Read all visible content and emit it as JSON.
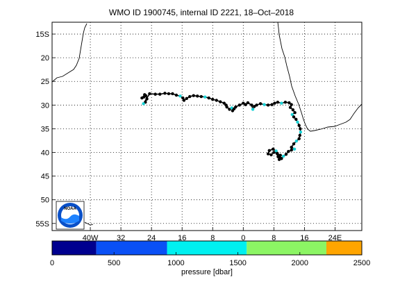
{
  "title": "WMO ID 1900745, internal ID 2221, 18–Oct–2018",
  "map": {
    "lat_labels": [
      "15S",
      "20",
      "25",
      "30",
      "35",
      "40",
      "45",
      "50",
      "55S"
    ],
    "lat_values": [
      15,
      20,
      25,
      30,
      35,
      40,
      45,
      50,
      55
    ],
    "lon_labels": [
      "40W",
      "32",
      "24",
      "16",
      "8",
      "0",
      "8",
      "16",
      "24E"
    ],
    "lon_values": [
      -40,
      -32,
      -24,
      -16,
      -8,
      0,
      8,
      16,
      24
    ],
    "lon_range": [
      -50,
      31
    ],
    "lat_range": [
      12.5,
      56.5
    ],
    "grid": true,
    "coastline_color": "#000000",
    "track_color": "#000000",
    "track_highlight_color": "#19d2d6",
    "track": [
      [
        -26.5,
        28.5
      ],
      [
        -26,
        28.3
      ],
      [
        -25.8,
        27.8
      ],
      [
        -25.5,
        28.0
      ],
      [
        -25.2,
        28.7
      ],
      [
        -25.6,
        29.4
      ],
      [
        -26.1,
        29.7
      ],
      [
        -24.5,
        27.6
      ],
      [
        -23,
        27.7
      ],
      [
        -21.8,
        27.7
      ],
      [
        -20.5,
        27.5
      ],
      [
        -19.5,
        27.6
      ],
      [
        -18.5,
        27.6
      ],
      [
        -17.5,
        27.9
      ],
      [
        -16.5,
        28.1
      ],
      [
        -15.8,
        28.5
      ],
      [
        -15.5,
        29.0
      ],
      [
        -14.8,
        28.6
      ],
      [
        -14,
        28.2
      ],
      [
        -13,
        28.0
      ],
      [
        -12,
        28.1
      ],
      [
        -11,
        28.2
      ],
      [
        -10,
        28.3
      ],
      [
        -9,
        28.5
      ],
      [
        -8,
        28.8
      ],
      [
        -7,
        29.0
      ],
      [
        -6,
        29.3
      ],
      [
        -5,
        29.6
      ],
      [
        -4.5,
        30.0
      ],
      [
        -4.3,
        30.4
      ],
      [
        -3.6,
        30.9
      ],
      [
        -3.0,
        30.6
      ],
      [
        -2.4,
        30.8
      ],
      [
        -2.8,
        31.2
      ],
      [
        -2,
        30.4
      ],
      [
        -1,
        30.0
      ],
      [
        0,
        29.6
      ],
      [
        0.6,
        29.9
      ],
      [
        1.2,
        29.5
      ],
      [
        2.2,
        30.0
      ],
      [
        2.5,
        30.9
      ],
      [
        2.9,
        30.3
      ],
      [
        3.5,
        30.0
      ],
      [
        4.5,
        29.7
      ],
      [
        5.5,
        29.9
      ],
      [
        6.5,
        30.0
      ],
      [
        7.5,
        29.9
      ],
      [
        8.2,
        29.6
      ],
      [
        9,
        29.4
      ],
      [
        10,
        29.6
      ],
      [
        11,
        29.4
      ],
      [
        12,
        29.5
      ],
      [
        12.6,
        29.9
      ],
      [
        12.3,
        30.5
      ],
      [
        13,
        31.0
      ],
      [
        13.5,
        31.6
      ],
      [
        12.8,
        32.0
      ],
      [
        13.2,
        32.5
      ],
      [
        13.8,
        33.0
      ],
      [
        14.2,
        33.6
      ],
      [
        14.6,
        34.3
      ],
      [
        14.9,
        35.0
      ],
      [
        15.0,
        35.7
      ],
      [
        14.8,
        36.4
      ],
      [
        14.6,
        37.1
      ],
      [
        13.9,
        37.6
      ],
      [
        13.2,
        38.2
      ],
      [
        12.6,
        38.9
      ],
      [
        13.4,
        39.3
      ],
      [
        12.6,
        39.5
      ],
      [
        11.8,
        39.8
      ],
      [
        11.2,
        40.4
      ],
      [
        10.5,
        40.8
      ],
      [
        10.0,
        41.3
      ],
      [
        9.4,
        41.5
      ],
      [
        9.7,
        40.6
      ],
      [
        8.9,
        40.3
      ],
      [
        8.6,
        39.7
      ],
      [
        7.8,
        39.3
      ],
      [
        6.8,
        39.6
      ],
      [
        6.5,
        40.3
      ],
      [
        7.3,
        40.5
      ],
      [
        8.0,
        40.0
      ],
      [
        8.9,
        40.2
      ],
      [
        9.1,
        40.9
      ],
      [
        9.7,
        41.2
      ]
    ],
    "highlight_indices": [
      6,
      14,
      22,
      31,
      40,
      44,
      49,
      56,
      59,
      62,
      65,
      68,
      72,
      77
    ]
  },
  "colorbar": {
    "label": "pressure [dbar]",
    "tick_labels": [
      "0",
      "500",
      "1000",
      "1500",
      "2000",
      "2500"
    ],
    "tick_values": [
      0,
      500,
      1000,
      1500,
      2000,
      2500
    ],
    "range": [
      0,
      2500
    ],
    "segments": [
      {
        "from": 0,
        "to": 357,
        "color": "#00008f"
      },
      {
        "from": 357,
        "to": 928,
        "color": "#0a50f5"
      },
      {
        "from": 928,
        "to": 1571,
        "color": "#00f0f0"
      },
      {
        "from": 1571,
        "to": 2214,
        "color": "#8cf564"
      },
      {
        "from": 2214,
        "to": 2500,
        "color": "#ffa500"
      }
    ]
  },
  "logo": {
    "text": "NOAA",
    "outer_color": "#0a50c8",
    "inner_color": "#ffffff",
    "wave_color": "#1e82ff"
  }
}
